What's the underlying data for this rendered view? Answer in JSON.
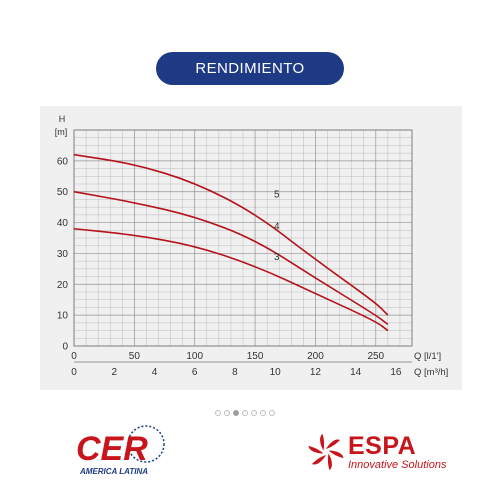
{
  "header": {
    "title": "RENDIMIENTO"
  },
  "colors": {
    "accent": "#1e3a85",
    "curve": "#b5121b",
    "grid": "#8a8a8a",
    "panel": "#f0f0f1",
    "brand": "#c8151b"
  },
  "chart_data": {
    "type": "line",
    "title": "",
    "ylabel": "H",
    "yunit": "[m]",
    "ylim": [
      0,
      70
    ],
    "yticks": [
      0,
      10,
      20,
      30,
      40,
      50,
      60
    ],
    "xlabel": "Q",
    "xunit": "[l/1']",
    "xlim": [
      0,
      280
    ],
    "xticks": [
      0,
      50,
      100,
      150,
      200,
      250
    ],
    "xlabel2": "Q",
    "xunit2": "[m³/h]",
    "xticks2": [
      "0",
      "2",
      "4",
      "6",
      "8",
      "10",
      "12",
      "14",
      "16"
    ],
    "grid": true,
    "series": [
      {
        "name": "5",
        "x": [
          0,
          50,
          100,
          150,
          200,
          250,
          260
        ],
        "values": [
          62,
          59,
          53,
          43,
          28,
          14,
          10
        ]
      },
      {
        "name": "4",
        "x": [
          0,
          50,
          100,
          150,
          200,
          250,
          260
        ],
        "values": [
          50,
          46.5,
          42,
          34.5,
          22,
          10,
          7
        ]
      },
      {
        "name": "3",
        "x": [
          0,
          50,
          100,
          150,
          200,
          250,
          260
        ],
        "values": [
          38,
          36,
          32.5,
          26,
          17,
          8,
          5
        ]
      }
    ]
  },
  "pagination": {
    "count": 7,
    "active": 3
  },
  "logos": {
    "left": {
      "text": "CER",
      "sub": "AMERICA LATINA"
    },
    "right": {
      "text": "ESPA",
      "sub": "Innovative Solutions"
    }
  }
}
